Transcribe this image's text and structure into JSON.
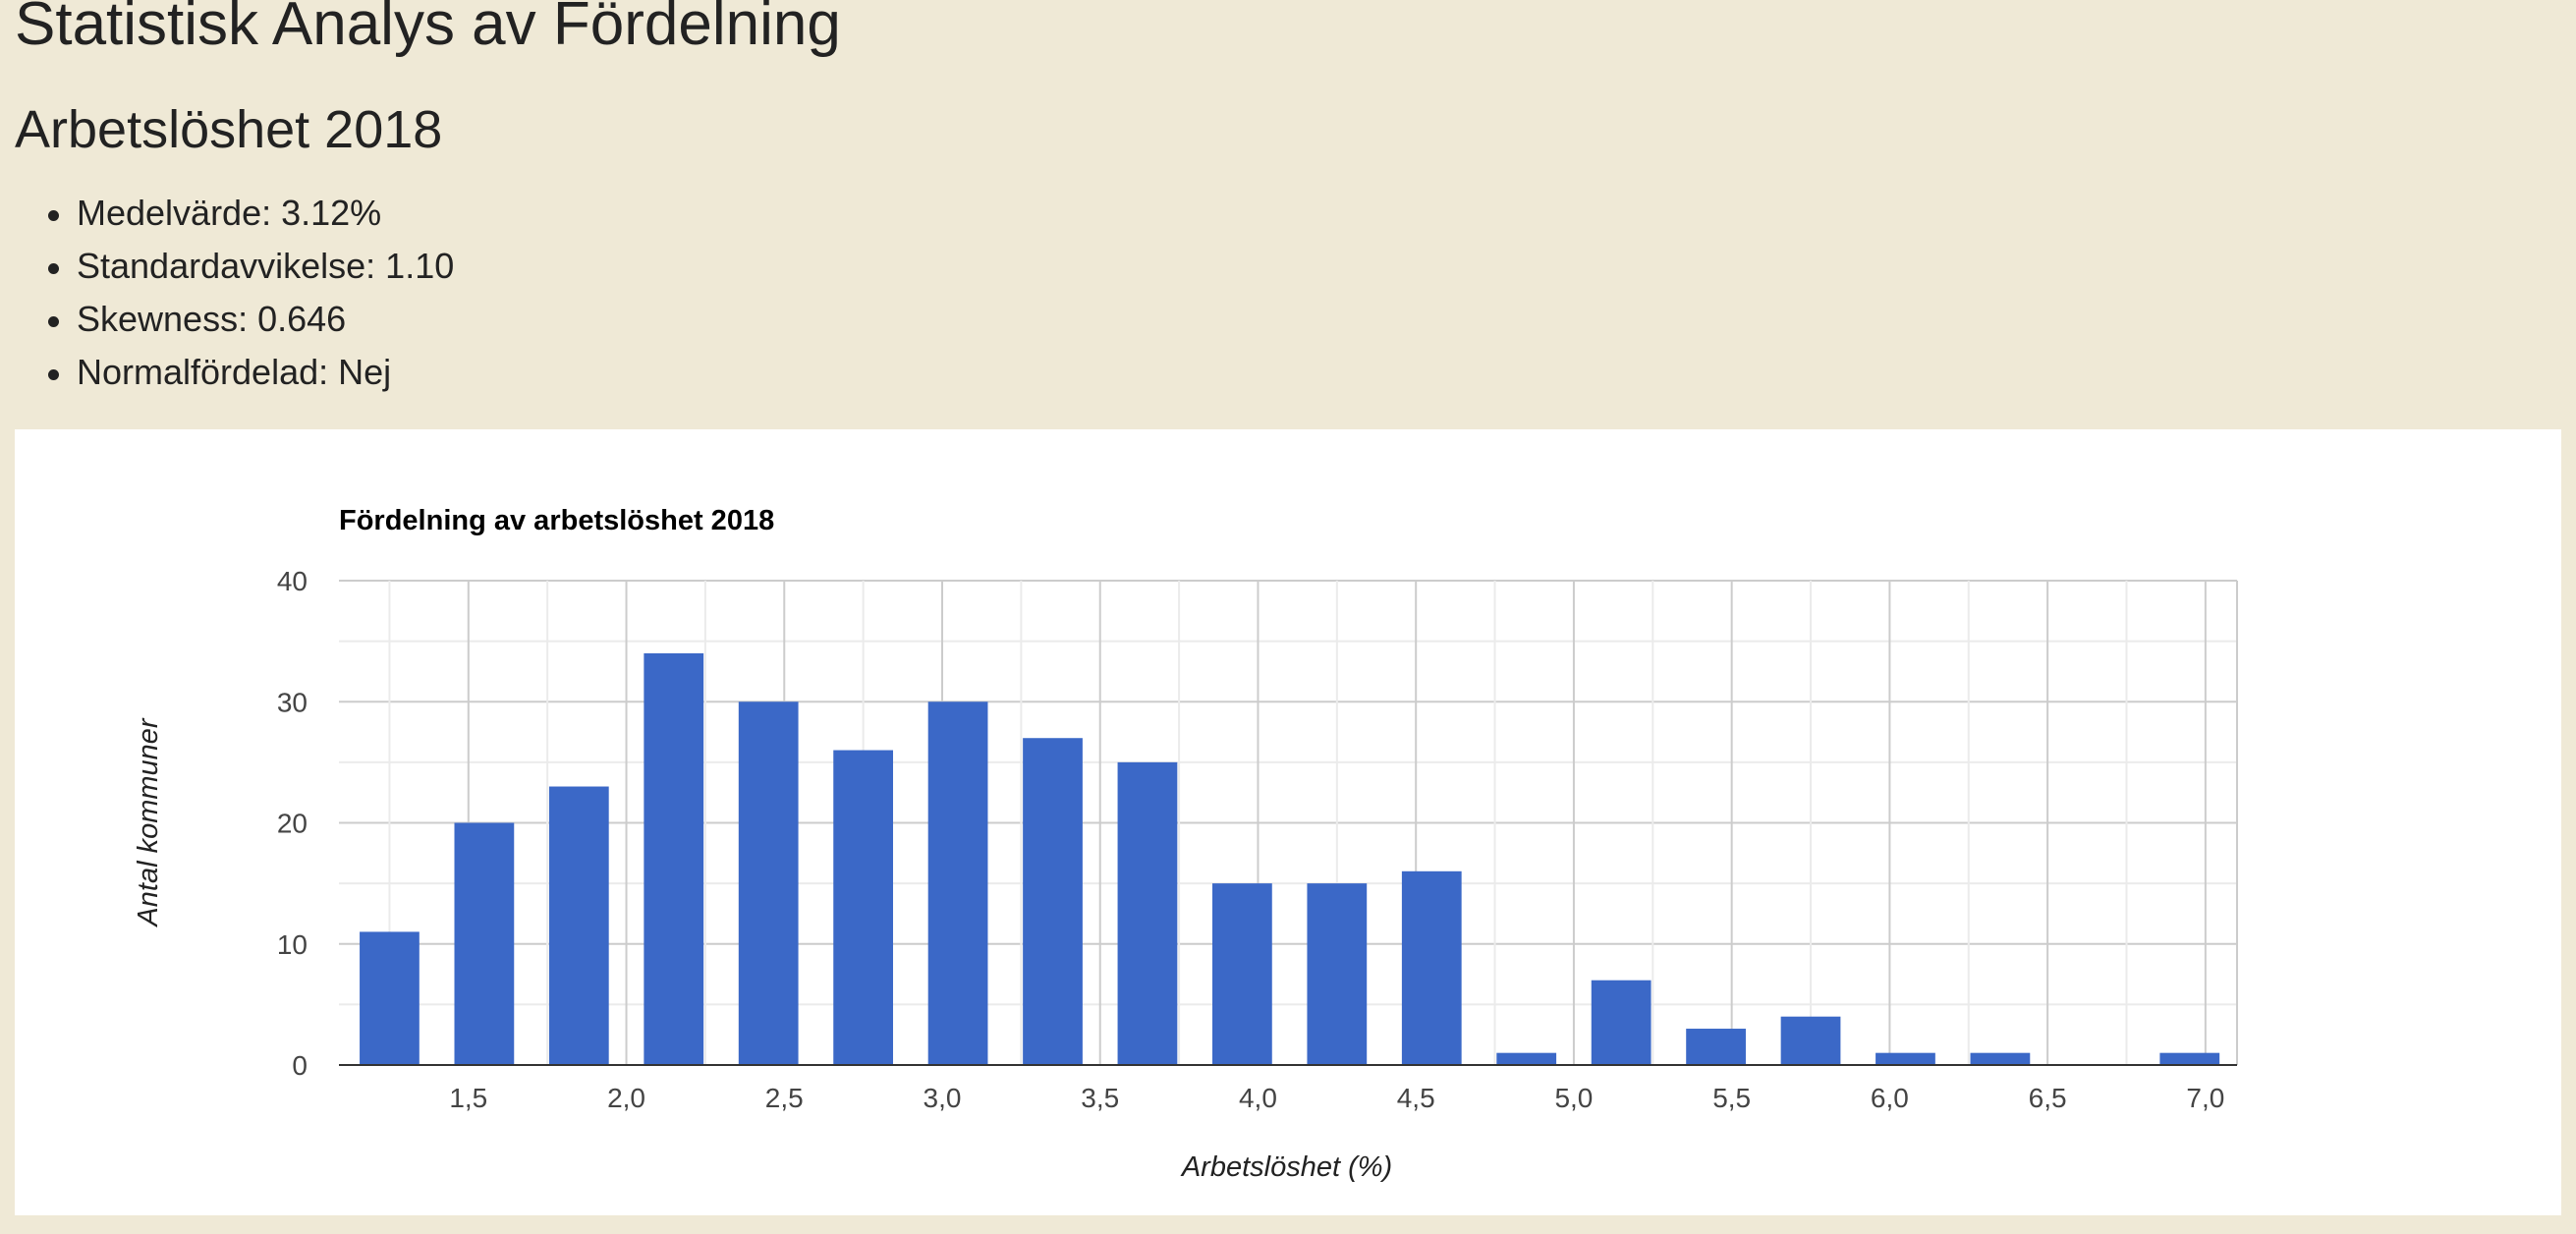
{
  "header": {
    "title": "Statistisk Analys av Fördelning",
    "section_title": "Arbetslöshet 2018"
  },
  "stats": [
    "Medelvärde: 3.12%",
    "Standardavvikelse: 1.10",
    "Skewness: 0.646",
    "Normalfördelad: Nej"
  ],
  "chart_data": {
    "type": "bar",
    "title": "Fördelning av arbetslöshet 2018",
    "xlabel": "Arbetslöshet (%)",
    "ylabel": "Antal kommuner",
    "x": [
      1.25,
      1.55,
      1.85,
      2.15,
      2.45,
      2.75,
      3.05,
      3.35,
      3.65,
      3.95,
      4.25,
      4.55,
      4.85,
      5.15,
      5.45,
      5.75,
      6.05,
      6.35,
      6.65,
      6.95
    ],
    "values": [
      11,
      20,
      23,
      34,
      30,
      26,
      30,
      27,
      25,
      15,
      15,
      16,
      1,
      7,
      3,
      4,
      1,
      1,
      0,
      1
    ],
    "xlim": [
      1.09,
      7.1
    ],
    "ylim": [
      0,
      40
    ],
    "x_ticks": [
      "1,5",
      "2,0",
      "2,5",
      "3,0",
      "3,5",
      "4,0",
      "4,5",
      "5,0",
      "5,5",
      "6,0",
      "6,5",
      "7,0"
    ],
    "y_ticks": [
      "0",
      "10",
      "20",
      "30",
      "40"
    ],
    "grid": true,
    "legend": "none",
    "bar_color": "#3b68c7"
  }
}
